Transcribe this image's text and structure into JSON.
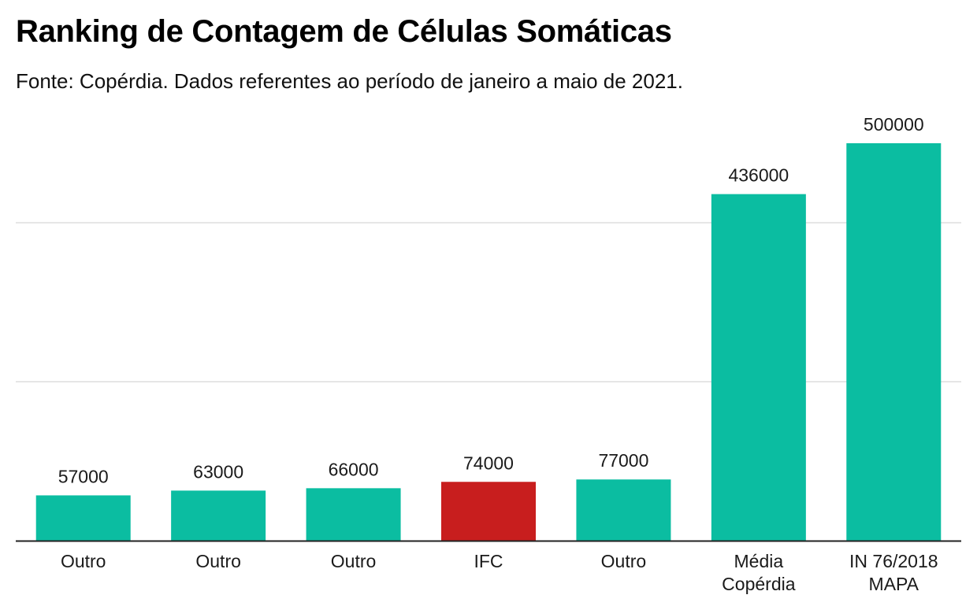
{
  "chart_data": {
    "type": "bar",
    "title": "Ranking de Contagem de Células Somáticas",
    "subtitle": "Fonte: Copérdia. Dados referentes ao período de janeiro a maio de 2021.",
    "xlabel": "",
    "ylabel": "",
    "categories": [
      [
        "Outro"
      ],
      [
        "Outro"
      ],
      [
        "Outro"
      ],
      [
        "IFC"
      ],
      [
        "Outro"
      ],
      [
        "Média",
        "Copérdia"
      ],
      [
        "IN 76/2018",
        "MAPA"
      ]
    ],
    "values": [
      57000,
      63000,
      66000,
      74000,
      77000,
      436000,
      500000
    ],
    "data_labels": [
      "57000",
      "63000",
      "66000",
      "74000",
      "77000",
      "436000",
      "500000"
    ],
    "highlight_index": 3,
    "ylim": [
      0,
      500000
    ],
    "gridlines": [
      200000,
      400000
    ],
    "grid": true,
    "legend": "none",
    "colors": {
      "bar": "#0bbda1",
      "highlight": "#c81e1e",
      "grid": "#dddddd",
      "axis": "#222222",
      "text": "#1a1a1a"
    }
  }
}
